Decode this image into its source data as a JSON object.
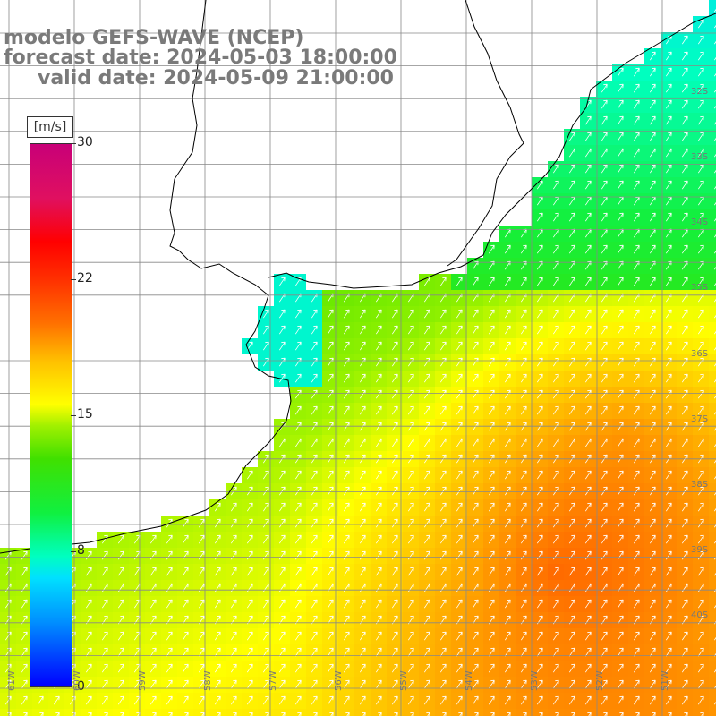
{
  "title_lines": [
    "modelo GEFS-WAVE (NCEP)",
    "forecast date: 2024-05-03 18:00:00",
    "valid date: 2024-05-09 21:00:00"
  ],
  "legend": {
    "unit": "[m/s]",
    "ticks": [
      "30",
      "22",
      "15",
      "8",
      "0"
    ],
    "tick_values": [
      30,
      22,
      15,
      8,
      0
    ],
    "max": 30,
    "min": 0
  },
  "lat_labels": [
    "32S",
    "33S",
    "34S",
    "35S",
    "36S",
    "37S",
    "38S",
    "39S",
    "40S"
  ],
  "lon_labels": [
    "61W",
    "60W",
    "59W",
    "58W",
    "57W",
    "56W",
    "55W",
    "54W",
    "53W",
    "52W",
    "51W"
  ],
  "colors": {
    "land": "#ffffff",
    "grid": "#888888",
    "coast": "#000000",
    "title": "#7a7a7a"
  }
}
